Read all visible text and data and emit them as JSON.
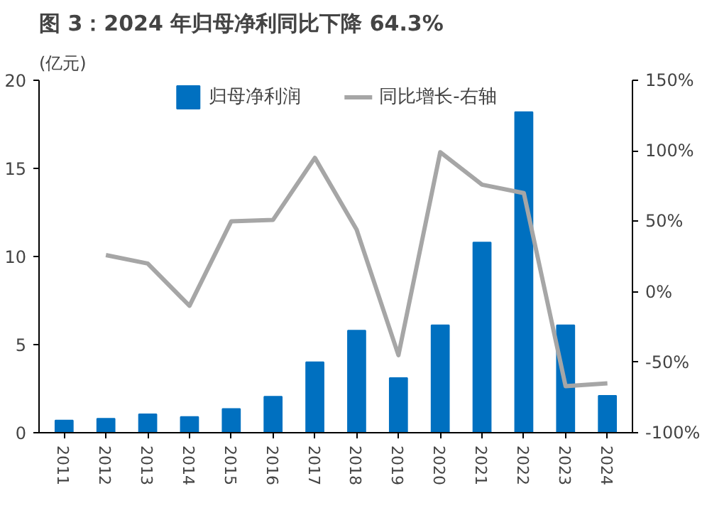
{
  "chart_data": {
    "type": "bar",
    "title": "图 3：2024 年归母净利同比下降 64.3%",
    "ylabel": "(亿元)",
    "categories": [
      "2011",
      "2012",
      "2013",
      "2014",
      "2015",
      "2016",
      "2017",
      "2018",
      "2019",
      "2020",
      "2021",
      "2022",
      "2023",
      "2024"
    ],
    "series": [
      {
        "name": "归母净利润",
        "color": "#0070c0",
        "values": [
          0.7,
          0.8,
          1.05,
          0.9,
          1.35,
          2.05,
          4.0,
          5.8,
          3.1,
          6.1,
          10.8,
          18.2,
          6.1,
          2.1
        ]
      },
      {
        "name": "同比增长-右轴",
        "type": "line",
        "axis": "y2",
        "color": "#a6a6a6",
        "values": [
          null,
          26,
          20,
          -10,
          50,
          51,
          95,
          44,
          -45,
          99,
          76,
          70,
          -67,
          -65
        ]
      }
    ],
    "ylim": [
      0,
      20
    ],
    "yticks": [
      0,
      5,
      10,
      15,
      20
    ],
    "y2lim": [
      -100,
      150
    ],
    "y2ticks": [
      {
        "value": -100,
        "label": "-100%"
      },
      {
        "value": -50,
        "label": "-50%"
      },
      {
        "value": 0,
        "label": "0%"
      },
      {
        "value": 50,
        "label": "50%"
      },
      {
        "value": 100,
        "label": "100%"
      },
      {
        "value": 150,
        "label": "150%"
      }
    ],
    "grid": false,
    "legend": "top",
    "marker": "none",
    "line_style": "solid"
  }
}
